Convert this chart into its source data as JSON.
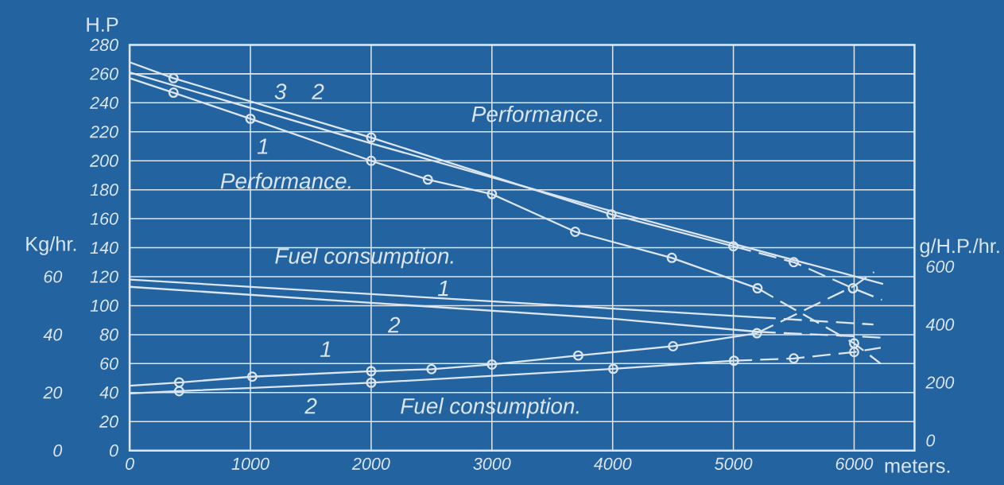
{
  "chart_data": {
    "type": "line",
    "ylabel": "H.P",
    "y3label": "Kg/hr.",
    "y2label": "g/H.P./hr.",
    "xlabel": "meters.",
    "xlim": [
      0,
      6500
    ],
    "xticks": [
      0,
      1000,
      2000,
      3000,
      4000,
      5000,
      6000
    ],
    "ylim": [
      0,
      280
    ],
    "yticks": [
      0,
      20,
      40,
      60,
      80,
      100,
      120,
      140,
      160,
      180,
      200,
      220,
      240,
      260,
      280
    ],
    "y2lim": [
      0,
      1400
    ],
    "y2ticks": [
      0,
      200,
      400,
      600
    ],
    "y3lim": [
      0,
      140
    ],
    "y3ticks": [
      0,
      20,
      40,
      60
    ],
    "grid": true,
    "marker": "none",
    "line_style": "solid",
    "series": [
      {
        "type": "line",
        "color": "#dce6f0",
        "x": [
          0,
          363,
          1000,
          2000,
          2470,
          3000,
          3690,
          4490,
          5200
        ],
        "values": [
          257,
          247,
          229,
          200,
          187,
          177,
          151,
          133,
          112
        ]
      },
      {
        "type": "line",
        "color": "#dce6f0",
        "line_style": "dashed",
        "x": [
          5200,
          6000,
          6220
        ],
        "values": [
          112,
          74,
          60
        ]
      },
      {
        "type": "scatter",
        "marker": "circle",
        "color": "#dce6f0",
        "x": [
          363,
          1000,
          2000,
          2470,
          3000,
          3690,
          4490,
          5200,
          6000
        ],
        "values": [
          247,
          229,
          200,
          187,
          177,
          151,
          133,
          112,
          74
        ]
      },
      {
        "type": "line",
        "color": "#dce6f0",
        "x": [
          0,
          363,
          2000,
          3990,
          5000
        ],
        "values": [
          268,
          257,
          216,
          163,
          141
        ]
      },
      {
        "type": "line",
        "color": "#dce6f0",
        "line_style": "dashed",
        "x": [
          5000,
          5500,
          5990,
          6230
        ],
        "values": [
          141,
          130,
          112,
          104
        ]
      },
      {
        "type": "scatter",
        "marker": "circle",
        "color": "#dce6f0",
        "x": [
          363,
          2000,
          3990,
          5000,
          5500,
          5990
        ],
        "values": [
          257,
          216,
          163,
          141,
          130,
          112
        ]
      },
      {
        "type": "line",
        "color": "#dce6f0",
        "x": [
          0,
          2000,
          4000,
          6240
        ],
        "values": [
          261,
          212,
          165,
          115
        ]
      },
      {
        "type": "line",
        "axis": "y3",
        "color": "#dce6f0",
        "x": [
          0,
          2000,
          4000,
          5200
        ],
        "values": [
          59,
          54,
          49,
          46
        ]
      },
      {
        "type": "line",
        "axis": "y3",
        "color": "#dce6f0",
        "line_style": "dashed",
        "x": [
          5200,
          6160
        ],
        "values": [
          46,
          43.5
        ]
      },
      {
        "type": "line",
        "axis": "y3",
        "color": "#dce6f0",
        "x": [
          0,
          2000,
          4000,
          5200
        ],
        "values": [
          56.5,
          51,
          45.5,
          41
        ]
      },
      {
        "type": "line",
        "axis": "y3",
        "color": "#dce6f0",
        "line_style": "dashed",
        "x": [
          5200,
          6220
        ],
        "values": [
          41,
          39
        ]
      },
      {
        "type": "line",
        "axis": "y2",
        "color": "#dce6f0",
        "x": [
          0,
          410,
          1015,
          2000,
          2500,
          3000,
          3715,
          4500,
          5195
        ],
        "values": [
          224,
          235,
          255,
          274,
          281,
          297,
          328,
          360,
          405
        ]
      },
      {
        "type": "line",
        "axis": "y2",
        "color": "#dce6f0",
        "line_style": "dashed",
        "x": [
          5195,
          6000,
          6165
        ],
        "values": [
          405,
          568,
          616
        ]
      },
      {
        "type": "scatter",
        "axis": "y2",
        "marker": "circle",
        "color": "#dce6f0",
        "x": [
          410,
          1015,
          2000,
          2500,
          3000,
          3715,
          4500,
          5195
        ],
        "values": [
          235,
          255,
          274,
          281,
          297,
          328,
          360,
          405
        ]
      },
      {
        "type": "line",
        "axis": "y2",
        "color": "#dce6f0",
        "x": [
          0,
          410,
          2000,
          4005,
          5005
        ],
        "values": [
          197,
          205,
          234,
          282,
          310
        ]
      },
      {
        "type": "line",
        "axis": "y2",
        "color": "#dce6f0",
        "line_style": "dashed",
        "x": [
          5005,
          5500,
          6000,
          6220
        ],
        "values": [
          310,
          318,
          340,
          355
        ]
      },
      {
        "type": "scatter",
        "axis": "y2",
        "marker": "circle",
        "color": "#dce6f0",
        "x": [
          410,
          2000,
          4005,
          5005,
          5500,
          6000
        ],
        "values": [
          205,
          234,
          282,
          310,
          318,
          340
        ]
      }
    ],
    "annotations": [
      "3",
      "2",
      "1",
      "Performance.",
      "Performance.",
      "Fuel consumption.",
      "1",
      "2",
      "1",
      "2",
      "Fuel consumption."
    ]
  }
}
